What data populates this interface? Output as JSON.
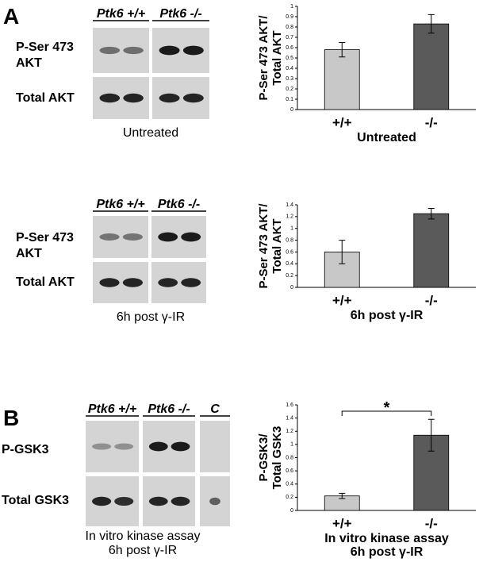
{
  "figure": {
    "panel_labels": [
      "A",
      "B"
    ],
    "blots": [
      {
        "group_labels": [
          "Ptk6 +/+",
          "Ptk6 -/-"
        ],
        "row_labels": [
          [
            "P-Ser 473",
            "AKT"
          ],
          [
            "Total AKT"
          ]
        ],
        "caption": [
          "Untreated"
        ]
      },
      {
        "group_labels": [
          "Ptk6 +/+",
          "Ptk6 -/-"
        ],
        "row_labels": [
          [
            "P-Ser 473",
            "AKT"
          ],
          [
            "Total AKT"
          ]
        ],
        "caption": [
          "6h post γ-IR"
        ]
      },
      {
        "group_labels": [
          "Ptk6 +/+",
          "Ptk6 -/-",
          "C"
        ],
        "row_labels": [
          [
            "P-GSK3"
          ],
          [
            "Total GSK3"
          ]
        ],
        "caption": [
          "In vitro kinase assay",
          "6h post γ-IR"
        ]
      }
    ]
  },
  "chart_data": [
    {
      "type": "bar",
      "ylabel": [
        "P-Ser 473 AKT/",
        "Total AKT"
      ],
      "xlabel": [
        "Untreated"
      ],
      "categories": [
        "+/+",
        "-/-"
      ],
      "values": [
        0.58,
        0.83
      ],
      "errors": [
        0.07,
        0.09
      ],
      "colors": [
        "#c8c8c8",
        "#5a5a5a"
      ],
      "ylim": [
        0,
        1
      ],
      "yticks": [
        0,
        0.1,
        0.2,
        0.3,
        0.4,
        0.5,
        0.6,
        0.7,
        0.8,
        0.9,
        1
      ]
    },
    {
      "type": "bar",
      "ylabel": [
        "P-Ser 473 AKT/",
        "Total AKT"
      ],
      "xlabel": [
        "6h post γ-IR"
      ],
      "categories": [
        "+/+",
        "-/-"
      ],
      "values": [
        0.6,
        1.25
      ],
      "errors": [
        0.2,
        0.09
      ],
      "colors": [
        "#c8c8c8",
        "#5a5a5a"
      ],
      "ylim": [
        0,
        1.4
      ],
      "yticks": [
        0,
        0.2,
        0.4,
        0.6,
        0.8,
        1,
        1.2,
        1.4
      ]
    },
    {
      "type": "bar",
      "ylabel": [
        "P-GSK3/",
        "Total GSK3"
      ],
      "xlabel": [
        "In vitro kinase assay",
        "6h post γ-IR"
      ],
      "categories": [
        "+/+",
        "-/-"
      ],
      "values": [
        0.22,
        1.14
      ],
      "errors": [
        0.04,
        0.24
      ],
      "colors": [
        "#c8c8c8",
        "#5a5a5a"
      ],
      "ylim": [
        0,
        1.6
      ],
      "yticks": [
        0,
        0.2,
        0.4,
        0.6,
        0.8,
        1,
        1.2,
        1.4,
        1.6
      ],
      "significance": "*"
    }
  ]
}
